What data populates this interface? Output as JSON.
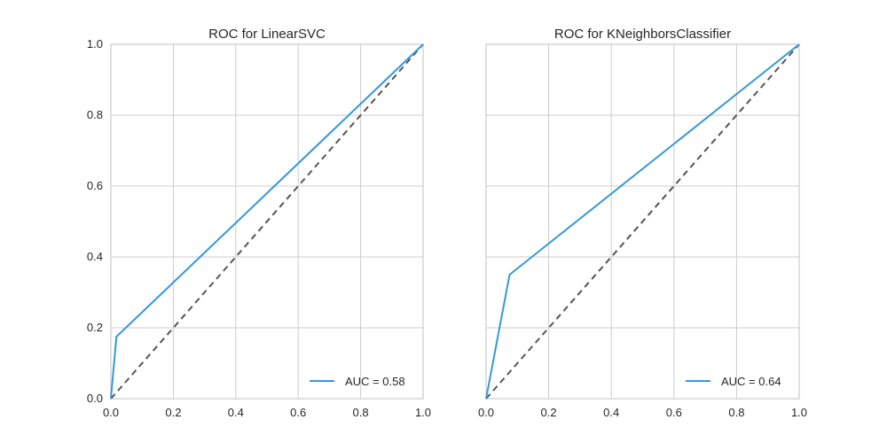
{
  "chart_data": [
    {
      "type": "line",
      "title": "ROC for LinearSVC",
      "xlabel": "",
      "ylabel": "",
      "xlim": [
        0.0,
        1.0
      ],
      "ylim": [
        0.0,
        1.0
      ],
      "xticks": [
        "0.0",
        "0.2",
        "0.4",
        "0.6",
        "0.8",
        "1.0"
      ],
      "yticks": [
        "0.0",
        "0.2",
        "0.4",
        "0.6",
        "0.8",
        "1.0"
      ],
      "grid": true,
      "legend_position": "lower-right",
      "series": [
        {
          "name": "AUC = 0.58",
          "color": "#3498db",
          "style": "solid",
          "x": [
            0.0,
            0.018,
            1.0
          ],
          "y": [
            0.0,
            0.175,
            1.0
          ]
        },
        {
          "color": "#555555",
          "style": "dashed",
          "x": [
            0.0,
            1.0
          ],
          "y": [
            0.0,
            1.0
          ]
        }
      ]
    },
    {
      "type": "line",
      "title": "ROC for KNeighborsClassifier",
      "xlabel": "",
      "ylabel": "",
      "xlim": [
        0.0,
        1.0
      ],
      "ylim": [
        0.0,
        1.0
      ],
      "xticks": [
        "0.0",
        "0.2",
        "0.4",
        "0.6",
        "0.8",
        "1.0"
      ],
      "yticks": [],
      "grid": true,
      "legend_position": "lower-right",
      "series": [
        {
          "name": "AUC = 0.64",
          "color": "#3498db",
          "style": "solid",
          "x": [
            0.0,
            0.075,
            1.0
          ],
          "y": [
            0.0,
            0.35,
            1.0
          ]
        },
        {
          "color": "#555555",
          "style": "dashed",
          "x": [
            0.0,
            1.0
          ],
          "y": [
            0.0,
            1.0
          ]
        }
      ]
    }
  ]
}
